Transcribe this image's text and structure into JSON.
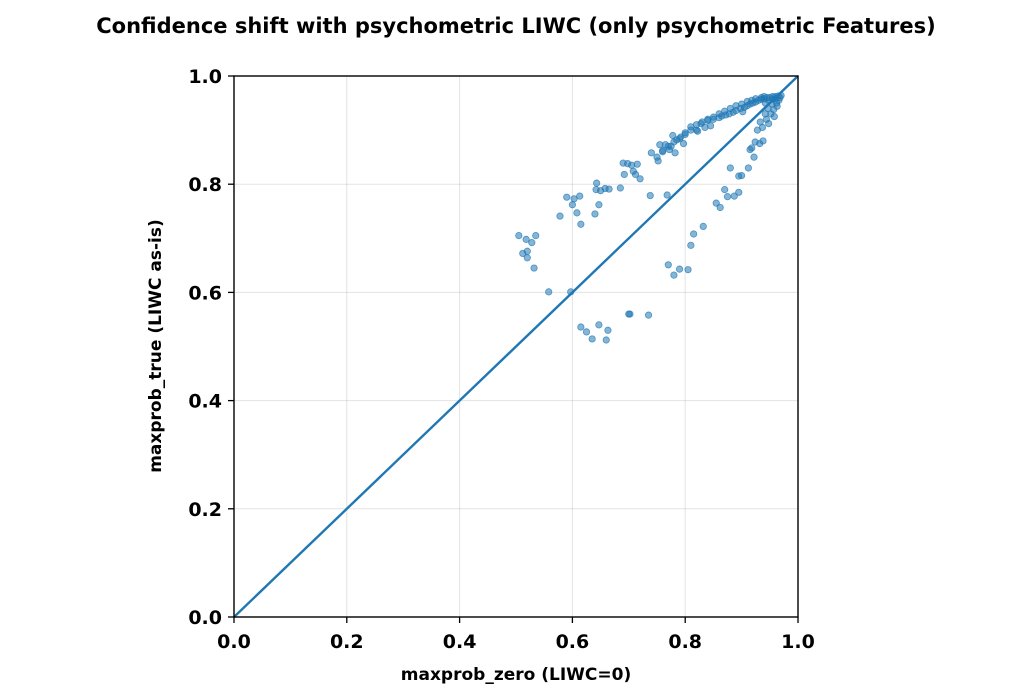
{
  "chart_data": {
    "type": "scatter",
    "title": "Confidence shift with psychometric LIWC (only psychometric Features)",
    "xlabel": "maxprob_zero (LIWC=0)",
    "ylabel": "maxprob_true (LIWC as-is)",
    "xlim": [
      0,
      1
    ],
    "ylim": [
      0,
      1
    ],
    "xticks": [
      "0.0",
      "0.2",
      "0.4",
      "0.6",
      "0.8",
      "1.0"
    ],
    "yticks": [
      "0.0",
      "0.2",
      "0.4",
      "0.6",
      "0.8",
      "1.0"
    ],
    "grid": true,
    "reference_line": "y = x",
    "series": [
      {
        "color": "#1f77b4",
        "points": [
          [
            0.505,
            0.705
          ],
          [
            0.512,
            0.672
          ],
          [
            0.518,
            0.698
          ],
          [
            0.52,
            0.664
          ],
          [
            0.52,
            0.676
          ],
          [
            0.528,
            0.692
          ],
          [
            0.535,
            0.705
          ],
          [
            0.532,
            0.645
          ],
          [
            0.558,
            0.601
          ],
          [
            0.578,
            0.741
          ],
          [
            0.59,
            0.776
          ],
          [
            0.597,
            0.601
          ],
          [
            0.6,
            0.762
          ],
          [
            0.603,
            0.773
          ],
          [
            0.608,
            0.747
          ],
          [
            0.613,
            0.778
          ],
          [
            0.615,
            0.726
          ],
          [
            0.615,
            0.536
          ],
          [
            0.625,
            0.527
          ],
          [
            0.635,
            0.514
          ],
          [
            0.64,
            0.745
          ],
          [
            0.642,
            0.79
          ],
          [
            0.643,
            0.802
          ],
          [
            0.647,
            0.762
          ],
          [
            0.647,
            0.54
          ],
          [
            0.65,
            0.788
          ],
          [
            0.658,
            0.792
          ],
          [
            0.66,
            0.512
          ],
          [
            0.663,
            0.53
          ],
          [
            0.665,
            0.791
          ],
          [
            0.685,
            0.793
          ],
          [
            0.69,
            0.839
          ],
          [
            0.692,
            0.818
          ],
          [
            0.698,
            0.838
          ],
          [
            0.7,
            0.56
          ],
          [
            0.702,
            0.56
          ],
          [
            0.705,
            0.835
          ],
          [
            0.708,
            0.824
          ],
          [
            0.712,
            0.818
          ],
          [
            0.715,
            0.837
          ],
          [
            0.72,
            0.81
          ],
          [
            0.735,
            0.558
          ],
          [
            0.738,
            0.779
          ],
          [
            0.74,
            0.858
          ],
          [
            0.75,
            0.85
          ],
          [
            0.752,
            0.843
          ],
          [
            0.755,
            0.873
          ],
          [
            0.76,
            0.86
          ],
          [
            0.765,
            0.873
          ],
          [
            0.768,
            0.78
          ],
          [
            0.77,
            0.651
          ],
          [
            0.772,
            0.864
          ],
          [
            0.775,
            0.87
          ],
          [
            0.778,
            0.89
          ],
          [
            0.78,
            0.632
          ],
          [
            0.782,
            0.858
          ],
          [
            0.785,
            0.882
          ],
          [
            0.79,
            0.643
          ],
          [
            0.792,
            0.887
          ],
          [
            0.797,
            0.875
          ],
          [
            0.8,
            0.895
          ],
          [
            0.805,
            0.642
          ],
          [
            0.81,
            0.687
          ],
          [
            0.815,
            0.708
          ],
          [
            0.81,
            0.906
          ],
          [
            0.82,
            0.9
          ],
          [
            0.822,
            0.898
          ],
          [
            0.828,
            0.912
          ],
          [
            0.832,
            0.722
          ],
          [
            0.835,
            0.905
          ],
          [
            0.84,
            0.918
          ],
          [
            0.845,
            0.908
          ],
          [
            0.85,
            0.92
          ],
          [
            0.855,
            0.765
          ],
          [
            0.86,
            0.923
          ],
          [
            0.862,
            0.757
          ],
          [
            0.865,
            0.926
          ],
          [
            0.87,
            0.79
          ],
          [
            0.872,
            0.928
          ],
          [
            0.875,
            0.777
          ],
          [
            0.878,
            0.93
          ],
          [
            0.88,
            0.83
          ],
          [
            0.885,
            0.933
          ],
          [
            0.887,
            0.778
          ],
          [
            0.89,
            0.936
          ],
          [
            0.895,
            0.785
          ],
          [
            0.895,
            0.815
          ],
          [
            0.898,
            0.94
          ],
          [
            0.9,
            0.816
          ],
          [
            0.902,
            0.934
          ],
          [
            0.905,
            0.942
          ],
          [
            0.91,
            0.945
          ],
          [
            0.912,
            0.83
          ],
          [
            0.915,
            0.864
          ],
          [
            0.915,
            0.948
          ],
          [
            0.918,
            0.867
          ],
          [
            0.92,
            0.95
          ],
          [
            0.922,
            0.85
          ],
          [
            0.924,
            0.878
          ],
          [
            0.925,
            0.952
          ],
          [
            0.928,
            0.9
          ],
          [
            0.93,
            0.955
          ],
          [
            0.932,
            0.875
          ],
          [
            0.933,
            0.915
          ],
          [
            0.935,
            0.957
          ],
          [
            0.937,
            0.905
          ],
          [
            0.938,
            0.88
          ],
          [
            0.94,
            0.958
          ],
          [
            0.942,
            0.93
          ],
          [
            0.944,
            0.92
          ],
          [
            0.945,
            0.96
          ],
          [
            0.947,
            0.94
          ],
          [
            0.948,
            0.912
          ],
          [
            0.95,
            0.96
          ],
          [
            0.952,
            0.93
          ],
          [
            0.954,
            0.948
          ],
          [
            0.955,
            0.962
          ],
          [
            0.957,
            0.938
          ],
          [
            0.958,
            0.925
          ],
          [
            0.96,
            0.962
          ],
          [
            0.962,
            0.95
          ],
          [
            0.963,
            0.944
          ],
          [
            0.965,
            0.963
          ],
          [
            0.966,
            0.955
          ],
          [
            0.968,
            0.96
          ],
          [
            0.97,
            0.964
          ],
          [
            0.94,
            0.962
          ],
          [
            0.935,
            0.96
          ],
          [
            0.925,
            0.958
          ],
          [
            0.918,
            0.955
          ],
          [
            0.91,
            0.953
          ],
          [
            0.9,
            0.948
          ],
          [
            0.89,
            0.945
          ],
          [
            0.88,
            0.94
          ],
          [
            0.87,
            0.935
          ],
          [
            0.86,
            0.93
          ],
          [
            0.85,
            0.924
          ],
          [
            0.84,
            0.92
          ],
          [
            0.83,
            0.915
          ],
          [
            0.82,
            0.91
          ],
          [
            0.81,
            0.9
          ],
          [
            0.8,
            0.892
          ],
          [
            0.79,
            0.884
          ],
          [
            0.78,
            0.878
          ],
          [
            0.77,
            0.87
          ],
          [
            0.76,
            0.862
          ],
          [
            0.955,
            0.957
          ],
          [
            0.948,
            0.955
          ],
          [
            0.942,
            0.95
          ],
          [
            0.96,
            0.958
          ]
        ]
      }
    ]
  }
}
